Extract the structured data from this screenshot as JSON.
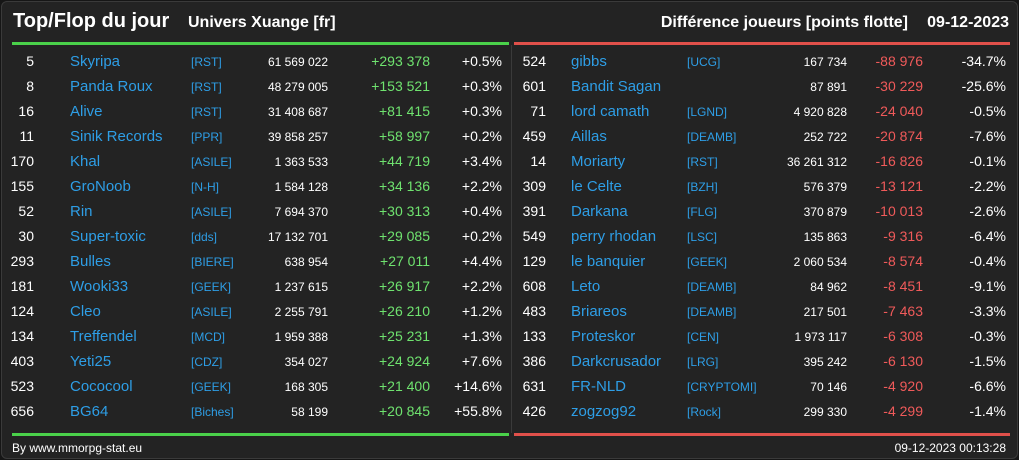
{
  "header": {
    "title": "Top/Flop du jour",
    "universe": "Univers Xuange [fr]",
    "subtitle": "Différence joueurs [points flotte]",
    "date": "09-12-2023"
  },
  "colors": {
    "background": "#232323",
    "top_accent": "#4ad14a",
    "flop_accent": "#e0504a",
    "name_link": "#2e9ee6",
    "positive": "#6fe36f",
    "negative": "#f05a5a"
  },
  "top": [
    {
      "rank": "5",
      "name": "Skyripa",
      "guild": "[RST]",
      "points": "61 569 022",
      "diff": "+293 378",
      "pct": "+0.5%"
    },
    {
      "rank": "8",
      "name": "Panda Roux",
      "guild": "[RST]",
      "points": "48 279 005",
      "diff": "+153 521",
      "pct": "+0.3%"
    },
    {
      "rank": "16",
      "name": "Alive",
      "guild": "[RST]",
      "points": "31 408 687",
      "diff": "+81 415",
      "pct": "+0.3%"
    },
    {
      "rank": "11",
      "name": "Sinik Records",
      "guild": "[PPR]",
      "points": "39 858 257",
      "diff": "+58 997",
      "pct": "+0.2%"
    },
    {
      "rank": "170",
      "name": "Khal",
      "guild": "[ASILE]",
      "points": "1 363 533",
      "diff": "+44 719",
      "pct": "+3.4%"
    },
    {
      "rank": "155",
      "name": "GroNoob",
      "guild": "[N-H]",
      "points": "1 584 128",
      "diff": "+34 136",
      "pct": "+2.2%"
    },
    {
      "rank": "52",
      "name": "Rin",
      "guild": "[ASILE]",
      "points": "7 694 370",
      "diff": "+30 313",
      "pct": "+0.4%"
    },
    {
      "rank": "30",
      "name": "Super-toxic",
      "guild": "[dds]",
      "points": "17 132 701",
      "diff": "+29 085",
      "pct": "+0.2%"
    },
    {
      "rank": "293",
      "name": "Bulles",
      "guild": "[BIERE]",
      "points": "638 954",
      "diff": "+27 011",
      "pct": "+4.4%"
    },
    {
      "rank": "181",
      "name": "Wooki33",
      "guild": "[GEEK]",
      "points": "1 237 615",
      "diff": "+26 917",
      "pct": "+2.2%"
    },
    {
      "rank": "124",
      "name": "Cleo",
      "guild": "[ASILE]",
      "points": "2 255 791",
      "diff": "+26 210",
      "pct": "+1.2%"
    },
    {
      "rank": "134",
      "name": "Treffendel",
      "guild": "[MCD]",
      "points": "1 959 388",
      "diff": "+25 231",
      "pct": "+1.3%"
    },
    {
      "rank": "403",
      "name": "Yeti25",
      "guild": "[CDZ]",
      "points": "354 027",
      "diff": "+24 924",
      "pct": "+7.6%"
    },
    {
      "rank": "523",
      "name": "Cococool",
      "guild": "[GEEK]",
      "points": "168 305",
      "diff": "+21 400",
      "pct": "+14.6%"
    },
    {
      "rank": "656",
      "name": "BG64",
      "guild": "[Biches]",
      "points": "58 199",
      "diff": "+20 845",
      "pct": "+55.8%"
    }
  ],
  "flop": [
    {
      "rank": "524",
      "name": "gibbs",
      "guild": "[UCG]",
      "points": "167 734",
      "diff": "-88 976",
      "pct": "-34.7%"
    },
    {
      "rank": "601",
      "name": "Bandit Sagan",
      "guild": "",
      "points": "87 891",
      "diff": "-30 229",
      "pct": "-25.6%"
    },
    {
      "rank": "71",
      "name": "lord camath",
      "guild": "[LGND]",
      "points": "4 920 828",
      "diff": "-24 040",
      "pct": "-0.5%"
    },
    {
      "rank": "459",
      "name": "Aillas",
      "guild": "[DEAMB]",
      "points": "252 722",
      "diff": "-20 874",
      "pct": "-7.6%"
    },
    {
      "rank": "14",
      "name": "Moriarty",
      "guild": "[RST]",
      "points": "36 261 312",
      "diff": "-16 826",
      "pct": "-0.1%"
    },
    {
      "rank": "309",
      "name": "le Celte",
      "guild": "[BZH]",
      "points": "576 379",
      "diff": "-13 121",
      "pct": "-2.2%"
    },
    {
      "rank": "391",
      "name": "Darkana",
      "guild": "[FLG]",
      "points": "370 879",
      "diff": "-10 013",
      "pct": "-2.6%"
    },
    {
      "rank": "549",
      "name": "perry rhodan",
      "guild": "[LSC]",
      "points": "135 863",
      "diff": "-9 316",
      "pct": "-6.4%"
    },
    {
      "rank": "129",
      "name": "le banquier",
      "guild": "[GEEK]",
      "points": "2 060 534",
      "diff": "-8 574",
      "pct": "-0.4%"
    },
    {
      "rank": "608",
      "name": "Leto",
      "guild": "[DEAMB]",
      "points": "84 962",
      "diff": "-8 451",
      "pct": "-9.1%"
    },
    {
      "rank": "483",
      "name": "Briareos",
      "guild": "[DEAMB]",
      "points": "217 501",
      "diff": "-7 463",
      "pct": "-3.3%"
    },
    {
      "rank": "133",
      "name": "Proteskor",
      "guild": "[CEN]",
      "points": "1 973 117",
      "diff": "-6 308",
      "pct": "-0.3%"
    },
    {
      "rank": "386",
      "name": "Darkcrusador",
      "guild": "[LRG]",
      "points": "395 242",
      "diff": "-6 130",
      "pct": "-1.5%"
    },
    {
      "rank": "631",
      "name": "FR-NLD",
      "guild": "[CRYPTOMI]",
      "points": "70 146",
      "diff": "-4 920",
      "pct": "-6.6%"
    },
    {
      "rank": "426",
      "name": "zogzog92",
      "guild": "[Rock]",
      "points": "299 330",
      "diff": "-4 299",
      "pct": "-1.4%"
    }
  ],
  "footer": {
    "credit": "By www.mmorpg-stat.eu",
    "timestamp": "09-12-2023 00:13:28"
  }
}
